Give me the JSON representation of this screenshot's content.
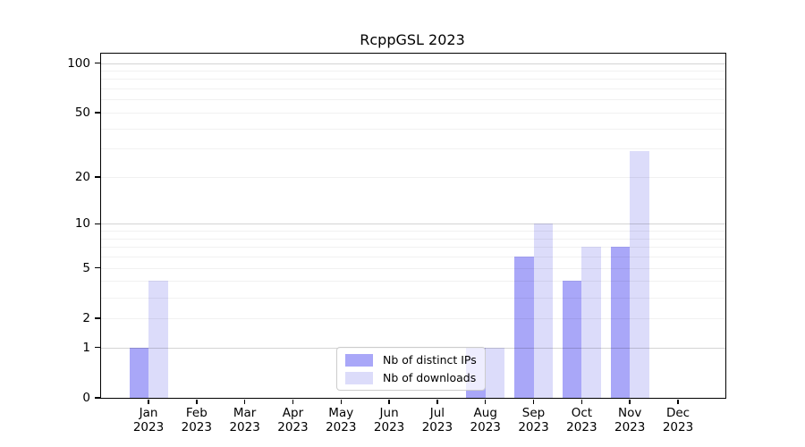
{
  "title": "RcppGSL 2023",
  "chart_data": {
    "type": "bar",
    "title": "RcppGSL 2023",
    "categories": [
      "Jan",
      "Feb",
      "Mar",
      "Apr",
      "May",
      "Jun",
      "Jul",
      "Aug",
      "Sep",
      "Oct",
      "Nov",
      "Dec"
    ],
    "tick_year": "2023",
    "series": [
      {
        "name": "Nb of distinct IPs",
        "color": "#a9a7f8",
        "values": [
          1,
          0,
          0,
          0,
          0,
          0,
          0,
          1,
          6,
          4,
          7,
          0
        ]
      },
      {
        "name": "Nb of downloads",
        "color": "#dcdcfa",
        "values": [
          4,
          0,
          0,
          0,
          0,
          0,
          0,
          1,
          10,
          7,
          29,
          0
        ]
      }
    ],
    "yscale": "log1p",
    "yticks": [
      0,
      1,
      2,
      5,
      10,
      20,
      50,
      100
    ],
    "ylim": [
      0,
      114
    ],
    "grid_major": [
      1,
      10,
      100
    ],
    "grid_minor": [
      2,
      3,
      4,
      5,
      6,
      7,
      8,
      9,
      20,
      30,
      40,
      50,
      60,
      70,
      80,
      90
    ],
    "grid": true,
    "legend_position": "lower center",
    "xlabel": "",
    "ylabel": ""
  }
}
